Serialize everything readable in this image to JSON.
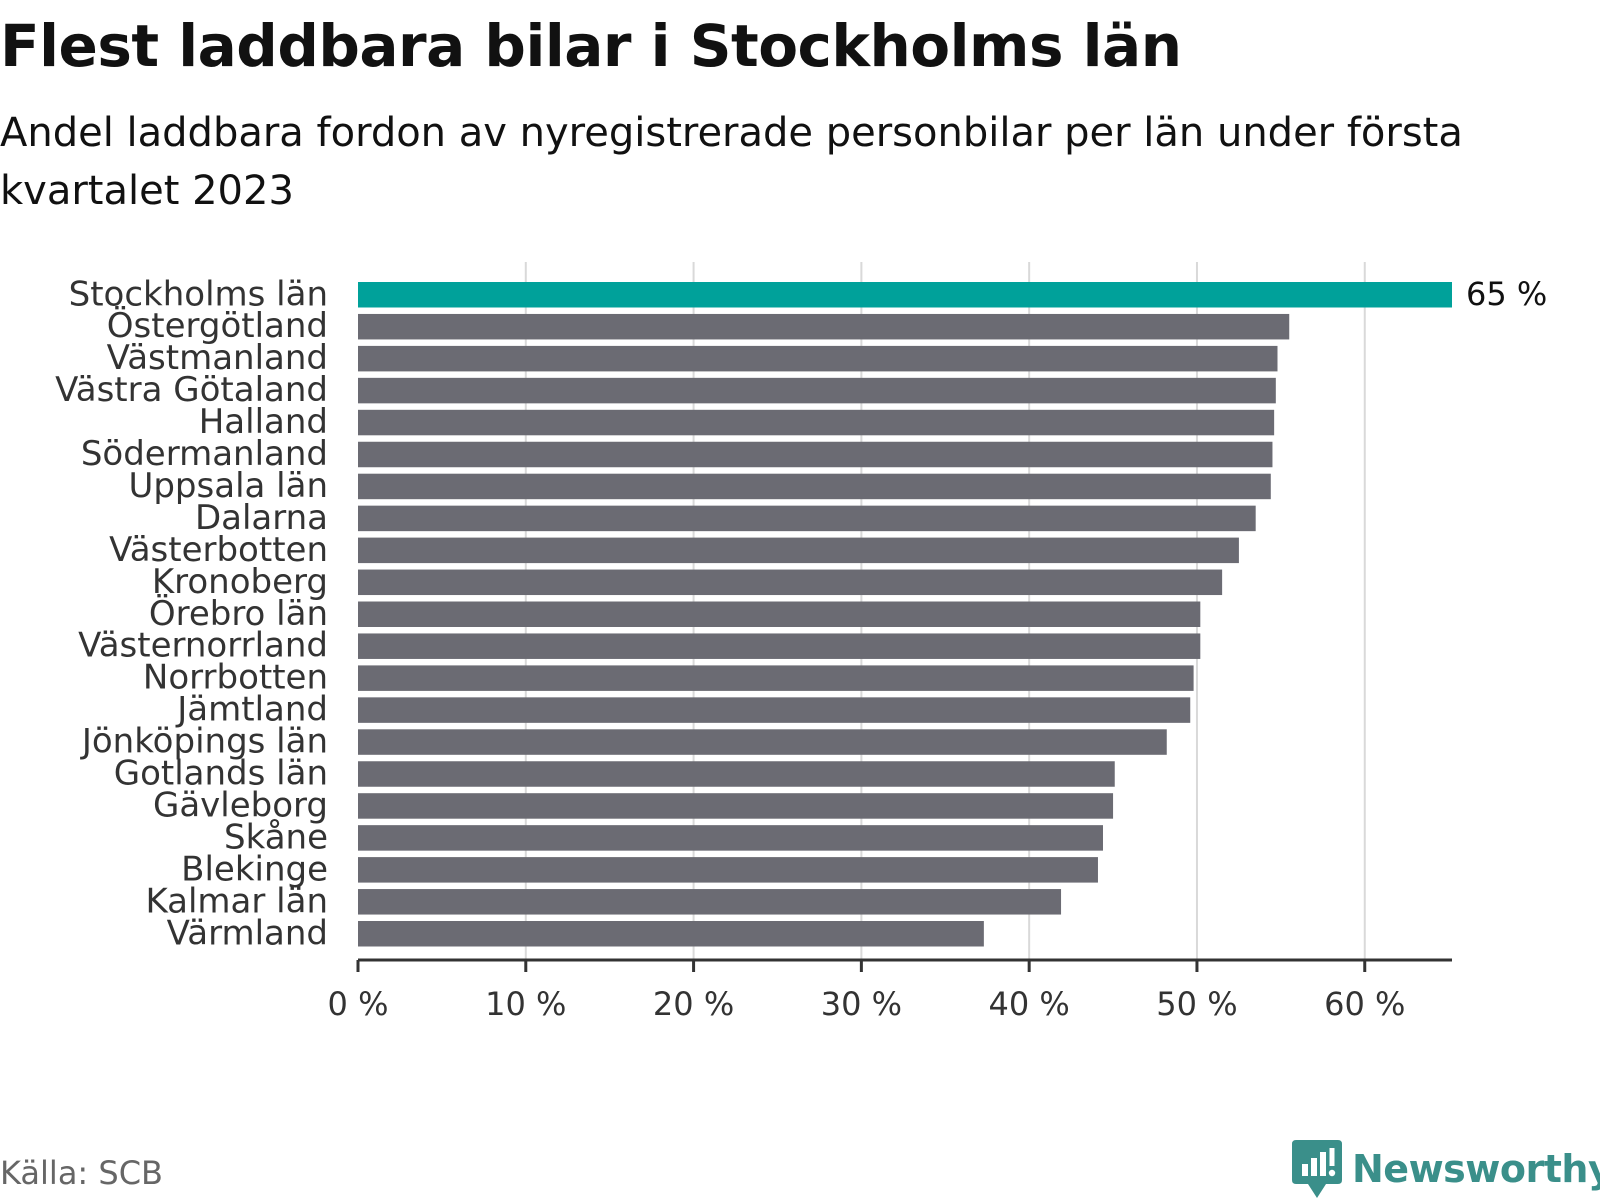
{
  "header": {
    "title": "Flest laddbara bilar i Stockholms län",
    "subtitle": "Andel laddbara fordon av nyregistrerade personbilar per län under första kvartalet 2023"
  },
  "footer": {
    "source": "Källa: SCB",
    "brand": "Newsworthy"
  },
  "colors": {
    "highlight": "#00a19a",
    "bar": "#6b6b73",
    "grid": "#d9d9d9",
    "axis": "#333333",
    "brand": "#3a8f8a"
  },
  "chart_data": {
    "type": "bar",
    "orientation": "horizontal",
    "title": "Flest laddbara bilar i Stockholms län",
    "subtitle": "Andel laddbara fordon av nyregistrerade personbilar per län under första kvartalet 2023",
    "categories": [
      "Stockholms län",
      "Östergötland",
      "Västmanland",
      "Västra Götaland",
      "Halland",
      "Södermanland",
      "Uppsala län",
      "Dalarna",
      "Västerbotten",
      "Kronoberg",
      "Örebro län",
      "Västernorrland",
      "Norrbotten",
      "Jämtland",
      "Jönköpings län",
      "Gotlands län",
      "Gävleborg",
      "Skåne",
      "Blekinge",
      "Kalmar län",
      "Värmland"
    ],
    "values": [
      65.2,
      55.5,
      54.8,
      54.7,
      54.6,
      54.5,
      54.4,
      53.5,
      52.5,
      51.5,
      50.2,
      50.2,
      49.8,
      49.6,
      48.2,
      45.1,
      45.0,
      44.4,
      44.1,
      41.9,
      37.3
    ],
    "highlight_index": 0,
    "highlight_label": "65 %",
    "xlim": [
      0,
      65.2
    ],
    "xticks": [
      0,
      10,
      20,
      30,
      40,
      50,
      60
    ],
    "xtick_labels": [
      "0 %",
      "10 %",
      "20 %",
      "30 %",
      "40 %",
      "50 %",
      "60 %"
    ],
    "xlabel": "",
    "ylabel": "",
    "grid": true
  }
}
